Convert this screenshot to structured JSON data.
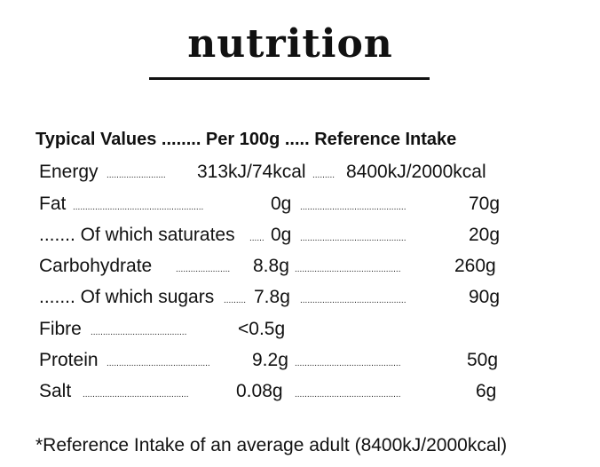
{
  "title": "nutrition",
  "header": "Typical Values ........ Per 100g ..... Reference Intake",
  "rows": [
    {
      "label": "Energy",
      "lead1": "........................",
      "per100": "313kJ/74kcal",
      "lead2": ".........",
      "ri": "8400kJ/2000kcal"
    },
    {
      "label": "Fat",
      "lead1": ".....................................................",
      "per100": "0g",
      "lead2": "...........................................",
      "ri": "70g"
    },
    {
      "label": "....... Of which saturates",
      "lead1": "......",
      "per100": "0g",
      "lead2": "...........................................",
      "ri": "20g"
    },
    {
      "label": "Carbohydrate",
      "lead1": "......................",
      "per100": "8.8g",
      "lead2": "...........................................",
      "ri": "260g"
    },
    {
      "label": "....... Of which sugars",
      "lead1": ".........",
      "per100": "7.8g",
      "lead2": "...........................................",
      "ri": "90g"
    },
    {
      "label": "Fibre",
      "lead1": ".......................................",
      "per100": "<0.5g",
      "lead2": "",
      "ri": ""
    },
    {
      "label": "Protein",
      "lead1": "..........................................",
      "per100": "9.2g",
      "lead2": "...........................................",
      "ri": "50g"
    },
    {
      "label": "Salt",
      "lead1": "...........................................",
      "per100": "0.08g",
      "lead2": "...........................................",
      "ri": "6g"
    }
  ],
  "footnote": "*Reference Intake of an average adult (8400kJ/2000kcal)"
}
